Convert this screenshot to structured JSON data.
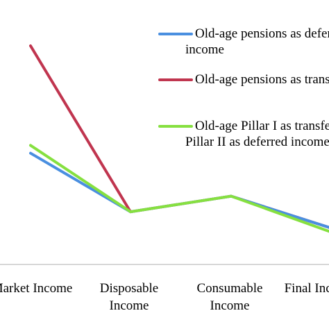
{
  "chart_data": {
    "type": "line",
    "categories": [
      "Market Income",
      "Disposable Income",
      "Consumable Income",
      "Final Income"
    ],
    "tick_labels": [
      {
        "lines": [
          "Market Income"
        ]
      },
      {
        "lines": [
          "Disposable",
          "Income"
        ]
      },
      {
        "lines": [
          "Consumable",
          "Income"
        ]
      },
      {
        "lines": [
          "Final Income"
        ]
      }
    ],
    "series": [
      {
        "name": "Old-age pensions as deferred income",
        "name_lines": [
          "Old-age pensions as deferred",
          "income"
        ],
        "color": "#4a8fe0",
        "values": [
          0.57,
          0.27,
          0.35,
          0.19
        ]
      },
      {
        "name": "Old-age pensions as transfers",
        "name_lines": [
          "Old-age pensions as transfers"
        ],
        "color": "#c0354f",
        "values": [
          1.12,
          0.27,
          0.35,
          0.19
        ]
      },
      {
        "name": "Old-age Pillar I as transfers, Pillar II as deferred income",
        "name_lines": [
          "Old-age Pillar I as transfers,",
          "Pillar II as deferred income"
        ],
        "color": "#86e040",
        "values": [
          0.61,
          0.27,
          0.35,
          0.17
        ]
      }
    ],
    "grid": false,
    "legend_position": "top-right"
  }
}
